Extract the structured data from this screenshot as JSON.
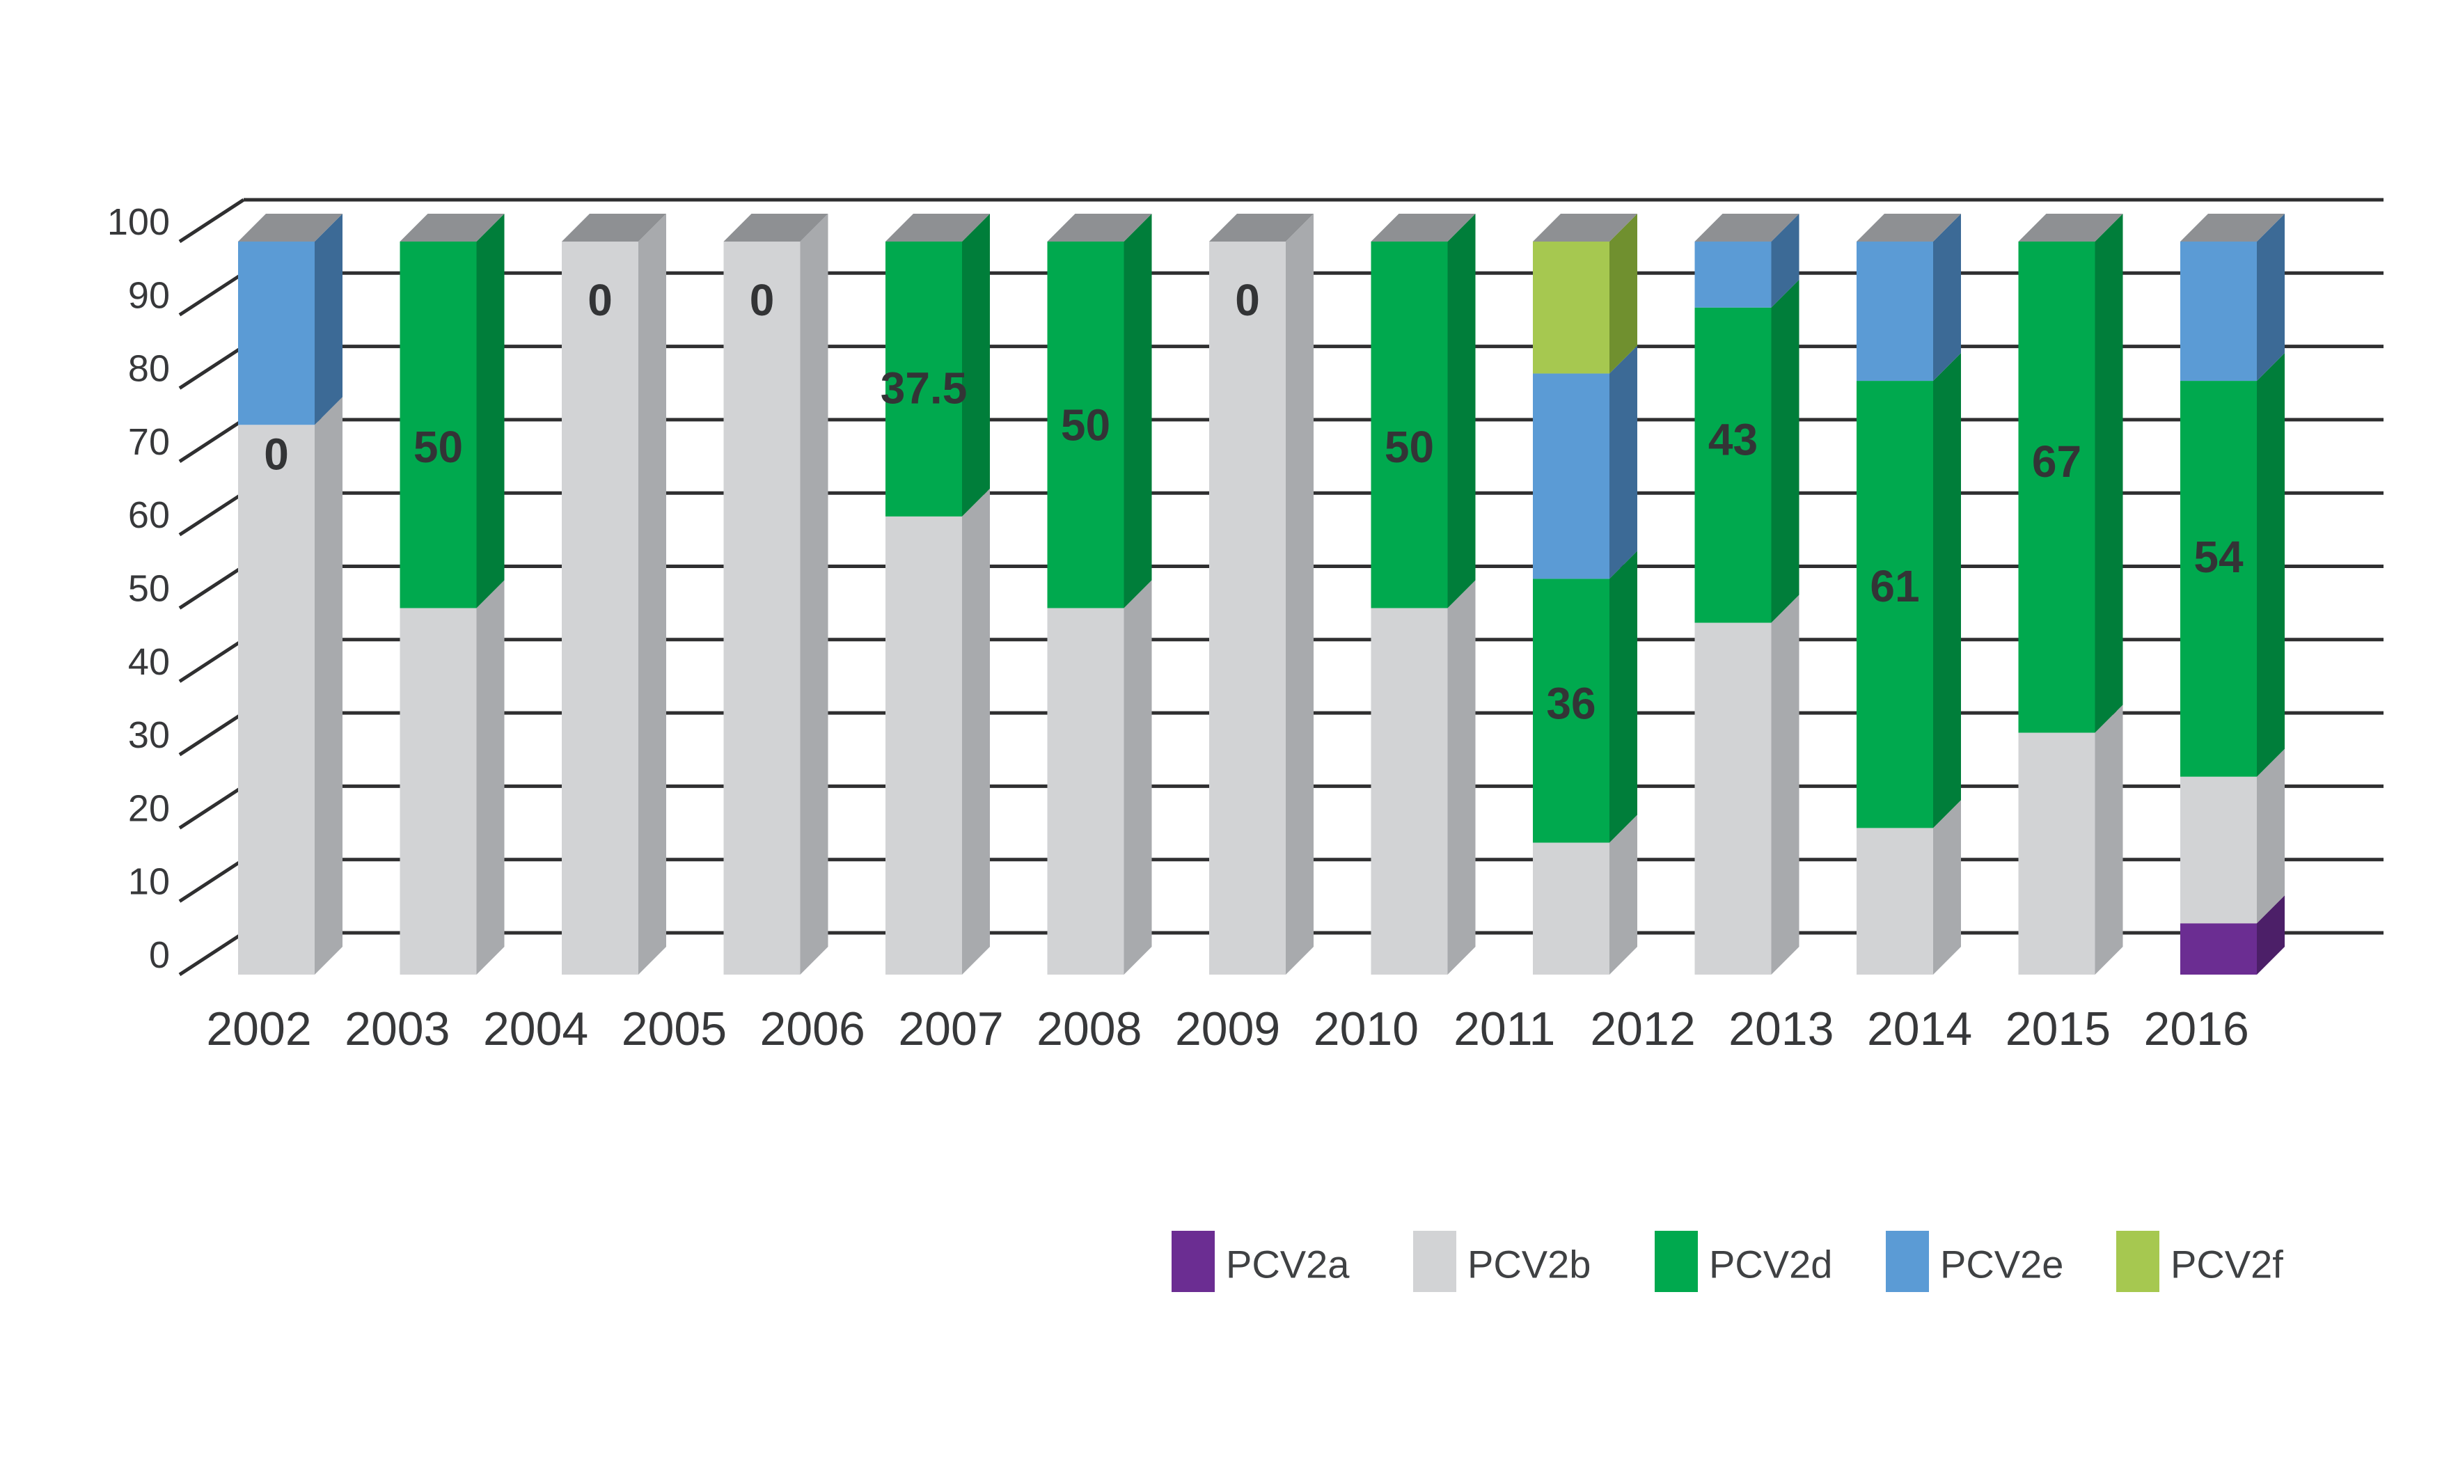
{
  "chart_data": {
    "type": "bar",
    "variant": "3d-stacked-column",
    "title": "",
    "xlabel": "",
    "ylabel": "",
    "ylim": [
      0,
      100
    ],
    "grid": true,
    "y_ticks": [
      0,
      10,
      20,
      30,
      40,
      50,
      60,
      70,
      80,
      90,
      100
    ],
    "x_axis_labels": [
      "2002",
      "2003",
      "2004",
      "2005",
      "2006",
      "2007",
      "2008",
      "2009",
      "2010",
      "2011",
      "2012",
      "2013",
      "2014",
      "2015",
      "2016"
    ],
    "series_order": [
      "PCV2a",
      "PCV2b",
      "PCV2d",
      "PCV2e",
      "PCV2f"
    ],
    "legend_position": "bottom-right",
    "legend": [
      {
        "name": "PCV2a",
        "color": "#6B2D92"
      },
      {
        "name": "PCV2b",
        "color": "#D2D3D5"
      },
      {
        "name": "PCV2d",
        "color": "#00A94E"
      },
      {
        "name": "PCV2e",
        "color": "#5B9BD5"
      },
      {
        "name": "PCV2f",
        "color": "#A6C850"
      }
    ],
    "bar_value_labels_meaning": "PCV2d percentage printed on each column",
    "bars": [
      {
        "year": "2002",
        "label": "0",
        "label_pos": 71,
        "segments": {
          "PCV2b": 75,
          "PCV2e": 25
        }
      },
      {
        "year": "2003",
        "label": "50",
        "label_pos": 72,
        "segments": {
          "PCV2b": 50,
          "PCV2d": 50
        }
      },
      {
        "year": "2004",
        "label": "0",
        "label_pos": 92,
        "segments": {
          "PCV2b": 100
        }
      },
      {
        "year": "2005",
        "label": "0",
        "label_pos": 92,
        "segments": {
          "PCV2b": 100
        }
      },
      {
        "year": "2007",
        "label": "37.5",
        "label_pos": 80,
        "segments": {
          "PCV2b": 62.5,
          "PCV2d": 37.5
        }
      },
      {
        "year": "2008",
        "label": "50",
        "label_pos": 75,
        "segments": {
          "PCV2b": 50,
          "PCV2d": 50
        }
      },
      {
        "year": "2009",
        "label": "0",
        "label_pos": 92,
        "segments": {
          "PCV2b": 100
        }
      },
      {
        "year": "2010",
        "label": "50",
        "label_pos": 72,
        "segments": {
          "PCV2b": 50,
          "PCV2d": 50
        }
      },
      {
        "year": "2011",
        "label": "36",
        "label_pos": 37,
        "segments": {
          "PCV2b": 18,
          "PCV2d": 36,
          "PCV2e": 28,
          "PCV2f": 18
        }
      },
      {
        "year": "2012",
        "label": "43",
        "label_pos": 73,
        "segments": {
          "PCV2b": 48,
          "PCV2d": 43,
          "PCV2e": 9
        }
      },
      {
        "year": "2013",
        "label": "61",
        "label_pos": 53,
        "segments": {
          "PCV2b": 20,
          "PCV2d": 61,
          "PCV2e": 19
        }
      },
      {
        "year": "2015",
        "label": "67",
        "label_pos": 70,
        "segments": {
          "PCV2b": 33,
          "PCV2d": 67
        }
      },
      {
        "year": "2016",
        "label": "54",
        "label_pos": 57,
        "segments": {
          "PCV2a": 7,
          "PCV2b": 20,
          "PCV2d": 54,
          "PCV2e": 19
        }
      }
    ],
    "colors": {
      "front": {
        "PCV2a": "#6B2D92",
        "PCV2b": "#D2D3D5",
        "PCV2d": "#00A94E",
        "PCV2e": "#5B9BD5",
        "PCV2f": "#A6C850"
      },
      "side": {
        "PCV2a": "#4C1F68",
        "PCV2b": "#A8AAAD",
        "PCV2d": "#007E3A",
        "PCV2e": "#3C6A96",
        "PCV2f": "#70902F"
      },
      "top_face": "#8E9093",
      "gridline": "#2F2F30",
      "text": "#37383A"
    }
  }
}
